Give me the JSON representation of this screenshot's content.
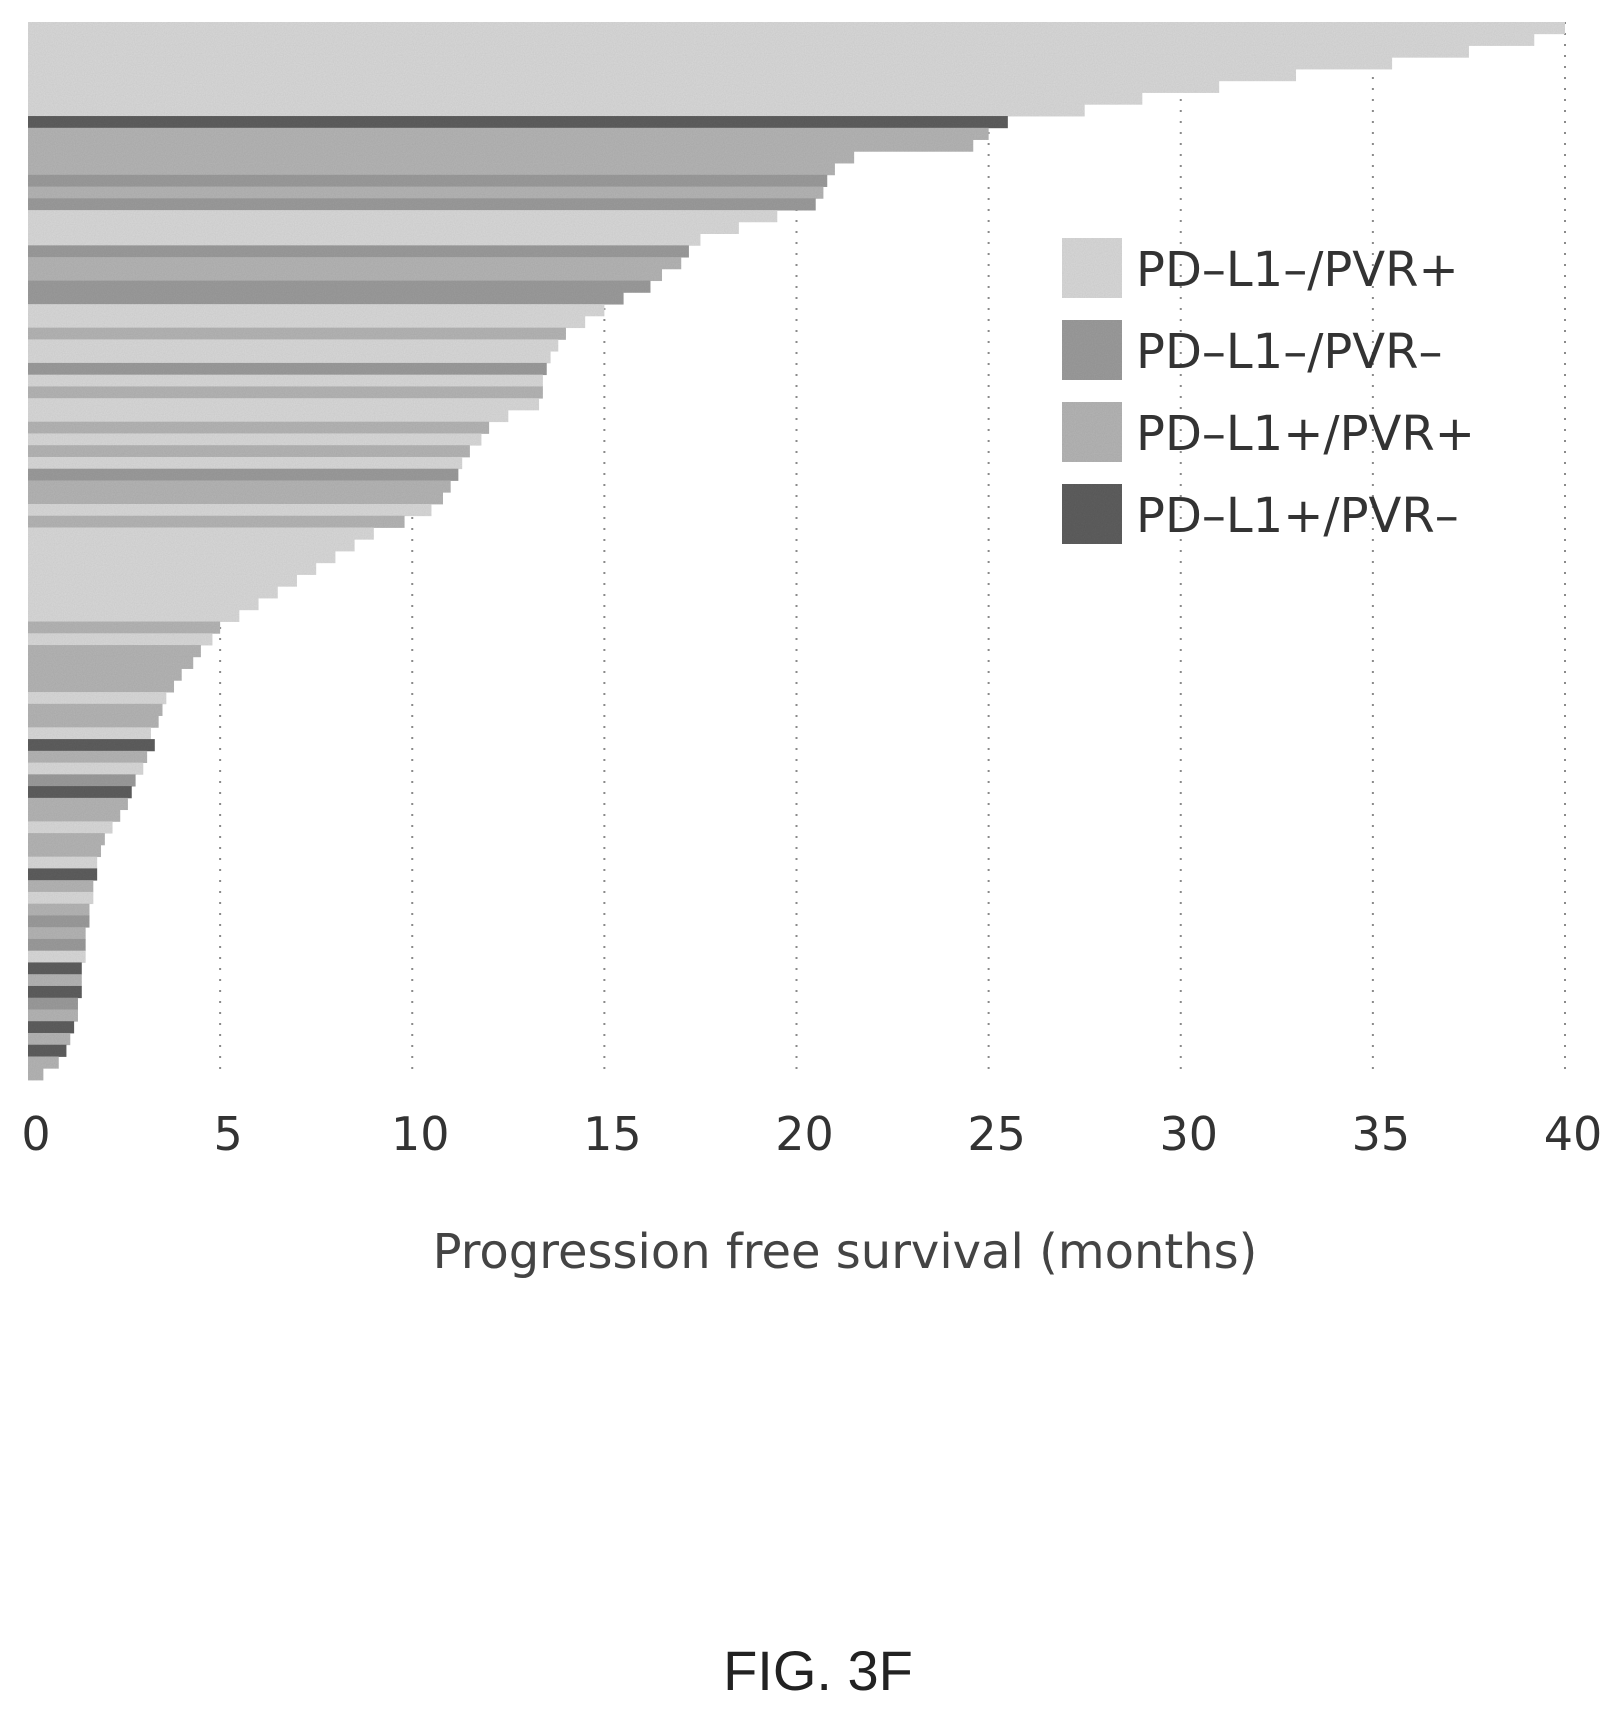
{
  "chart_data": {
    "type": "bar",
    "orientation": "horizontal",
    "xlabel": "Progression free survival (months)",
    "xlim": [
      0,
      40
    ],
    "xticks": [
      "0",
      "5",
      "10",
      "15",
      "20",
      "25",
      "30",
      "35",
      "40"
    ],
    "grid": "vertical dotted",
    "legend_position": "right",
    "legend": [
      {
        "label": "PD–L1–/PVR+",
        "color": "#d9d9d9"
      },
      {
        "label": "PD–L1–/PVR–",
        "color": "#9c9c9c"
      },
      {
        "label": "PD–L1+/PVR+",
        "color": "#b5b5b5"
      },
      {
        "label": "PD–L1+/PVR–",
        "color": "#5e5e5e"
      }
    ],
    "bars": [
      {
        "value": 40.0,
        "group": 0
      },
      {
        "value": 39.2,
        "group": 0
      },
      {
        "value": 37.5,
        "group": 0
      },
      {
        "value": 35.5,
        "group": 0
      },
      {
        "value": 33.0,
        "group": 0
      },
      {
        "value": 31.0,
        "group": 0
      },
      {
        "value": 29.0,
        "group": 0
      },
      {
        "value": 27.5,
        "group": 0
      },
      {
        "value": 25.5,
        "group": 3
      },
      {
        "value": 25.0,
        "group": 2
      },
      {
        "value": 24.6,
        "group": 2
      },
      {
        "value": 21.5,
        "group": 2
      },
      {
        "value": 21.0,
        "group": 2
      },
      {
        "value": 20.8,
        "group": 1
      },
      {
        "value": 20.7,
        "group": 2
      },
      {
        "value": 20.5,
        "group": 1
      },
      {
        "value": 19.5,
        "group": 0
      },
      {
        "value": 18.5,
        "group": 0
      },
      {
        "value": 17.5,
        "group": 0
      },
      {
        "value": 17.2,
        "group": 1
      },
      {
        "value": 17.0,
        "group": 2
      },
      {
        "value": 16.5,
        "group": 2
      },
      {
        "value": 16.2,
        "group": 1
      },
      {
        "value": 15.5,
        "group": 1
      },
      {
        "value": 15.0,
        "group": 0
      },
      {
        "value": 14.5,
        "group": 0
      },
      {
        "value": 14.0,
        "group": 2
      },
      {
        "value": 13.8,
        "group": 0
      },
      {
        "value": 13.6,
        "group": 0
      },
      {
        "value": 13.5,
        "group": 1
      },
      {
        "value": 13.4,
        "group": 0
      },
      {
        "value": 13.4,
        "group": 2
      },
      {
        "value": 13.3,
        "group": 0
      },
      {
        "value": 12.5,
        "group": 0
      },
      {
        "value": 12.0,
        "group": 2
      },
      {
        "value": 11.8,
        "group": 0
      },
      {
        "value": 11.5,
        "group": 2
      },
      {
        "value": 11.3,
        "group": 0
      },
      {
        "value": 11.2,
        "group": 1
      },
      {
        "value": 11.0,
        "group": 2
      },
      {
        "value": 10.8,
        "group": 2
      },
      {
        "value": 10.5,
        "group": 0
      },
      {
        "value": 9.8,
        "group": 2
      },
      {
        "value": 9.0,
        "group": 0
      },
      {
        "value": 8.5,
        "group": 0
      },
      {
        "value": 8.0,
        "group": 0
      },
      {
        "value": 7.5,
        "group": 0
      },
      {
        "value": 7.0,
        "group": 0
      },
      {
        "value": 6.5,
        "group": 0
      },
      {
        "value": 6.0,
        "group": 0
      },
      {
        "value": 5.5,
        "group": 0
      },
      {
        "value": 5.0,
        "group": 2
      },
      {
        "value": 4.8,
        "group": 0
      },
      {
        "value": 4.5,
        "group": 2
      },
      {
        "value": 4.3,
        "group": 2
      },
      {
        "value": 4.0,
        "group": 2
      },
      {
        "value": 3.8,
        "group": 2
      },
      {
        "value": 3.6,
        "group": 0
      },
      {
        "value": 3.5,
        "group": 2
      },
      {
        "value": 3.4,
        "group": 2
      },
      {
        "value": 3.2,
        "group": 0
      },
      {
        "value": 3.3,
        "group": 3
      },
      {
        "value": 3.1,
        "group": 2
      },
      {
        "value": 3.0,
        "group": 0
      },
      {
        "value": 2.8,
        "group": 1
      },
      {
        "value": 2.7,
        "group": 3
      },
      {
        "value": 2.6,
        "group": 2
      },
      {
        "value": 2.4,
        "group": 2
      },
      {
        "value": 2.2,
        "group": 0
      },
      {
        "value": 2.0,
        "group": 2
      },
      {
        "value": 1.9,
        "group": 2
      },
      {
        "value": 1.8,
        "group": 0
      },
      {
        "value": 1.8,
        "group": 3
      },
      {
        "value": 1.7,
        "group": 2
      },
      {
        "value": 1.7,
        "group": 0
      },
      {
        "value": 1.6,
        "group": 2
      },
      {
        "value": 1.6,
        "group": 1
      },
      {
        "value": 1.5,
        "group": 2
      },
      {
        "value": 1.5,
        "group": 1
      },
      {
        "value": 1.5,
        "group": 0
      },
      {
        "value": 1.4,
        "group": 3
      },
      {
        "value": 1.4,
        "group": 2
      },
      {
        "value": 1.4,
        "group": 3
      },
      {
        "value": 1.3,
        "group": 1
      },
      {
        "value": 1.3,
        "group": 2
      },
      {
        "value": 1.2,
        "group": 3
      },
      {
        "value": 1.1,
        "group": 2
      },
      {
        "value": 1.0,
        "group": 3
      },
      {
        "value": 0.8,
        "group": 2
      },
      {
        "value": 0.4,
        "group": 2
      }
    ]
  },
  "figure": {
    "caption": "FIG. 3F"
  }
}
